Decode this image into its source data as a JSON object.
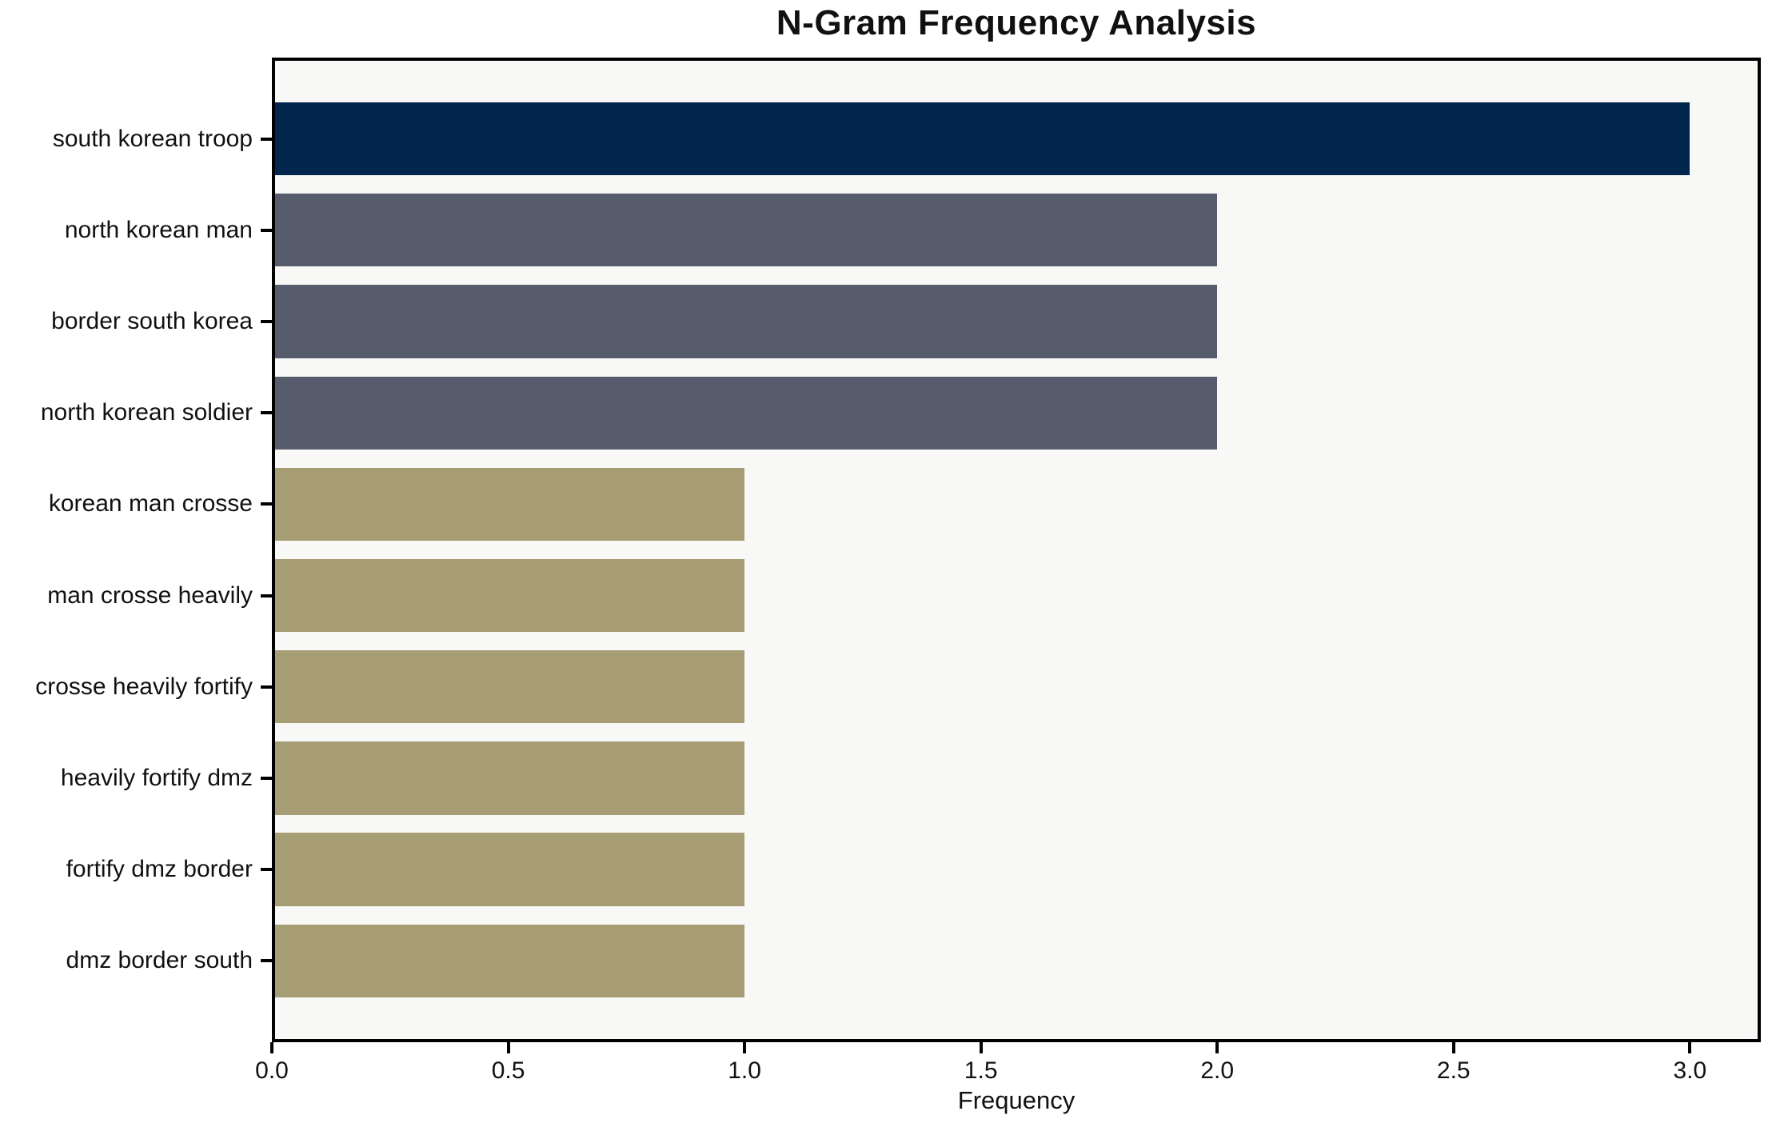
{
  "chart_data": {
    "type": "bar",
    "orientation": "horizontal",
    "title": "N-Gram Frequency Analysis",
    "xlabel": "Frequency",
    "ylabel": "",
    "categories": [
      "south korean troop",
      "north korean man",
      "border south korea",
      "north korean soldier",
      "korean man crosse",
      "man crosse heavily",
      "crosse heavily fortify",
      "heavily fortify dmz",
      "fortify dmz border",
      "dmz border south"
    ],
    "values": [
      3,
      2,
      2,
      2,
      1,
      1,
      1,
      1,
      1,
      1
    ],
    "bar_colors": [
      "#02254d",
      "#565c6b",
      "#565c6b",
      "#565c6b",
      "#a69d74",
      "#a69d74",
      "#a69d74",
      "#a69d74",
      "#a69d74",
      "#a69d74"
    ],
    "x_ticks": [
      "0.0",
      "0.5",
      "1.0",
      "1.5",
      "2.0",
      "2.5",
      "3.0"
    ],
    "x_tick_values": [
      0,
      0.5,
      1.0,
      1.5,
      2.0,
      2.5,
      3.0
    ],
    "xlim": [
      0,
      3.15
    ],
    "grid": false,
    "legend_position": "none",
    "plot_background": "#f8f8f7",
    "figure_background": "#ffffff",
    "spine_color": "#000000"
  }
}
